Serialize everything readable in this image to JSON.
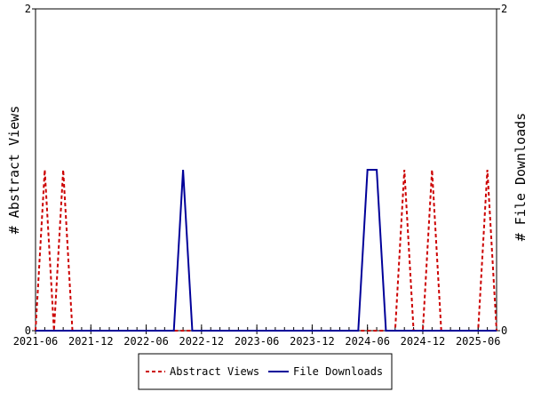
{
  "chart_data": {
    "type": "line",
    "x_start": "2021-06",
    "x_end": "2025-08",
    "x_ticks": [
      "2021-06",
      "2021-12",
      "2022-06",
      "2022-12",
      "2023-06",
      "2023-12",
      "2024-06",
      "2024-12",
      "2025-06"
    ],
    "ylabel": "# Abstract Views",
    "y2label": "# File Downloads",
    "ylim": [
      0,
      2
    ],
    "y_ticks": [
      "0",
      "2"
    ],
    "y2lim": [
      0,
      2
    ],
    "y2_ticks": [
      "0",
      "2"
    ],
    "legend_position": "bottom",
    "series": [
      {
        "name": "Abstract Views",
        "color": "#cc0000",
        "dash": "dashed",
        "points": [
          [
            "2021-06",
            0
          ],
          [
            "2021-07",
            1
          ],
          [
            "2021-08",
            0
          ],
          [
            "2021-09",
            1
          ],
          [
            "2021-10",
            0
          ],
          [
            "2021-11",
            0
          ],
          [
            "2021-12",
            0
          ],
          [
            "2022-01",
            0
          ],
          [
            "2022-02",
            0
          ],
          [
            "2022-03",
            0
          ],
          [
            "2022-04",
            0
          ],
          [
            "2022-05",
            0
          ],
          [
            "2022-06",
            0
          ],
          [
            "2022-07",
            0
          ],
          [
            "2022-08",
            0
          ],
          [
            "2022-09",
            0
          ],
          [
            "2022-10",
            0
          ],
          [
            "2022-11",
            0
          ],
          [
            "2022-12",
            0
          ],
          [
            "2023-01",
            0
          ],
          [
            "2023-02",
            0
          ],
          [
            "2023-03",
            0
          ],
          [
            "2023-04",
            0
          ],
          [
            "2023-05",
            0
          ],
          [
            "2023-06",
            0
          ],
          [
            "2023-07",
            0
          ],
          [
            "2023-08",
            0
          ],
          [
            "2023-09",
            0
          ],
          [
            "2023-10",
            0
          ],
          [
            "2023-11",
            0
          ],
          [
            "2023-12",
            0
          ],
          [
            "2024-01",
            0
          ],
          [
            "2024-02",
            0
          ],
          [
            "2024-03",
            0
          ],
          [
            "2024-04",
            0
          ],
          [
            "2024-05",
            0
          ],
          [
            "2024-06",
            0
          ],
          [
            "2024-07",
            0
          ],
          [
            "2024-08",
            0
          ],
          [
            "2024-09",
            0
          ],
          [
            "2024-10",
            1
          ],
          [
            "2024-11",
            0
          ],
          [
            "2024-12",
            0
          ],
          [
            "2025-01",
            1
          ],
          [
            "2025-02",
            0
          ],
          [
            "2025-03",
            0
          ],
          [
            "2025-04",
            0
          ],
          [
            "2025-05",
            0
          ],
          [
            "2025-06",
            0
          ],
          [
            "2025-07",
            1
          ],
          [
            "2025-08",
            0
          ]
        ]
      },
      {
        "name": "File Downloads",
        "color": "#000099",
        "dash": "solid",
        "points": [
          [
            "2021-06",
            0
          ],
          [
            "2021-07",
            0
          ],
          [
            "2021-08",
            0
          ],
          [
            "2021-09",
            0
          ],
          [
            "2021-10",
            0
          ],
          [
            "2021-11",
            0
          ],
          [
            "2021-12",
            0
          ],
          [
            "2022-01",
            0
          ],
          [
            "2022-02",
            0
          ],
          [
            "2022-03",
            0
          ],
          [
            "2022-04",
            0
          ],
          [
            "2022-05",
            0
          ],
          [
            "2022-06",
            0
          ],
          [
            "2022-07",
            0
          ],
          [
            "2022-08",
            0
          ],
          [
            "2022-09",
            0
          ],
          [
            "2022-10",
            1
          ],
          [
            "2022-11",
            0
          ],
          [
            "2022-12",
            0
          ],
          [
            "2023-01",
            0
          ],
          [
            "2023-02",
            0
          ],
          [
            "2023-03",
            0
          ],
          [
            "2023-04",
            0
          ],
          [
            "2023-05",
            0
          ],
          [
            "2023-06",
            0
          ],
          [
            "2023-07",
            0
          ],
          [
            "2023-08",
            0
          ],
          [
            "2023-09",
            0
          ],
          [
            "2023-10",
            0
          ],
          [
            "2023-11",
            0
          ],
          [
            "2023-12",
            0
          ],
          [
            "2024-01",
            0
          ],
          [
            "2024-02",
            0
          ],
          [
            "2024-03",
            0
          ],
          [
            "2024-04",
            0
          ],
          [
            "2024-05",
            0
          ],
          [
            "2024-06",
            1
          ],
          [
            "2024-07",
            1
          ],
          [
            "2024-08",
            0
          ],
          [
            "2024-09",
            0
          ],
          [
            "2024-10",
            0
          ],
          [
            "2024-11",
            0
          ],
          [
            "2024-12",
            0
          ],
          [
            "2025-01",
            0
          ],
          [
            "2025-02",
            0
          ],
          [
            "2025-03",
            0
          ],
          [
            "2025-04",
            0
          ],
          [
            "2025-05",
            0
          ],
          [
            "2025-06",
            0
          ],
          [
            "2025-07",
            0
          ],
          [
            "2025-08",
            0
          ]
        ]
      }
    ]
  }
}
